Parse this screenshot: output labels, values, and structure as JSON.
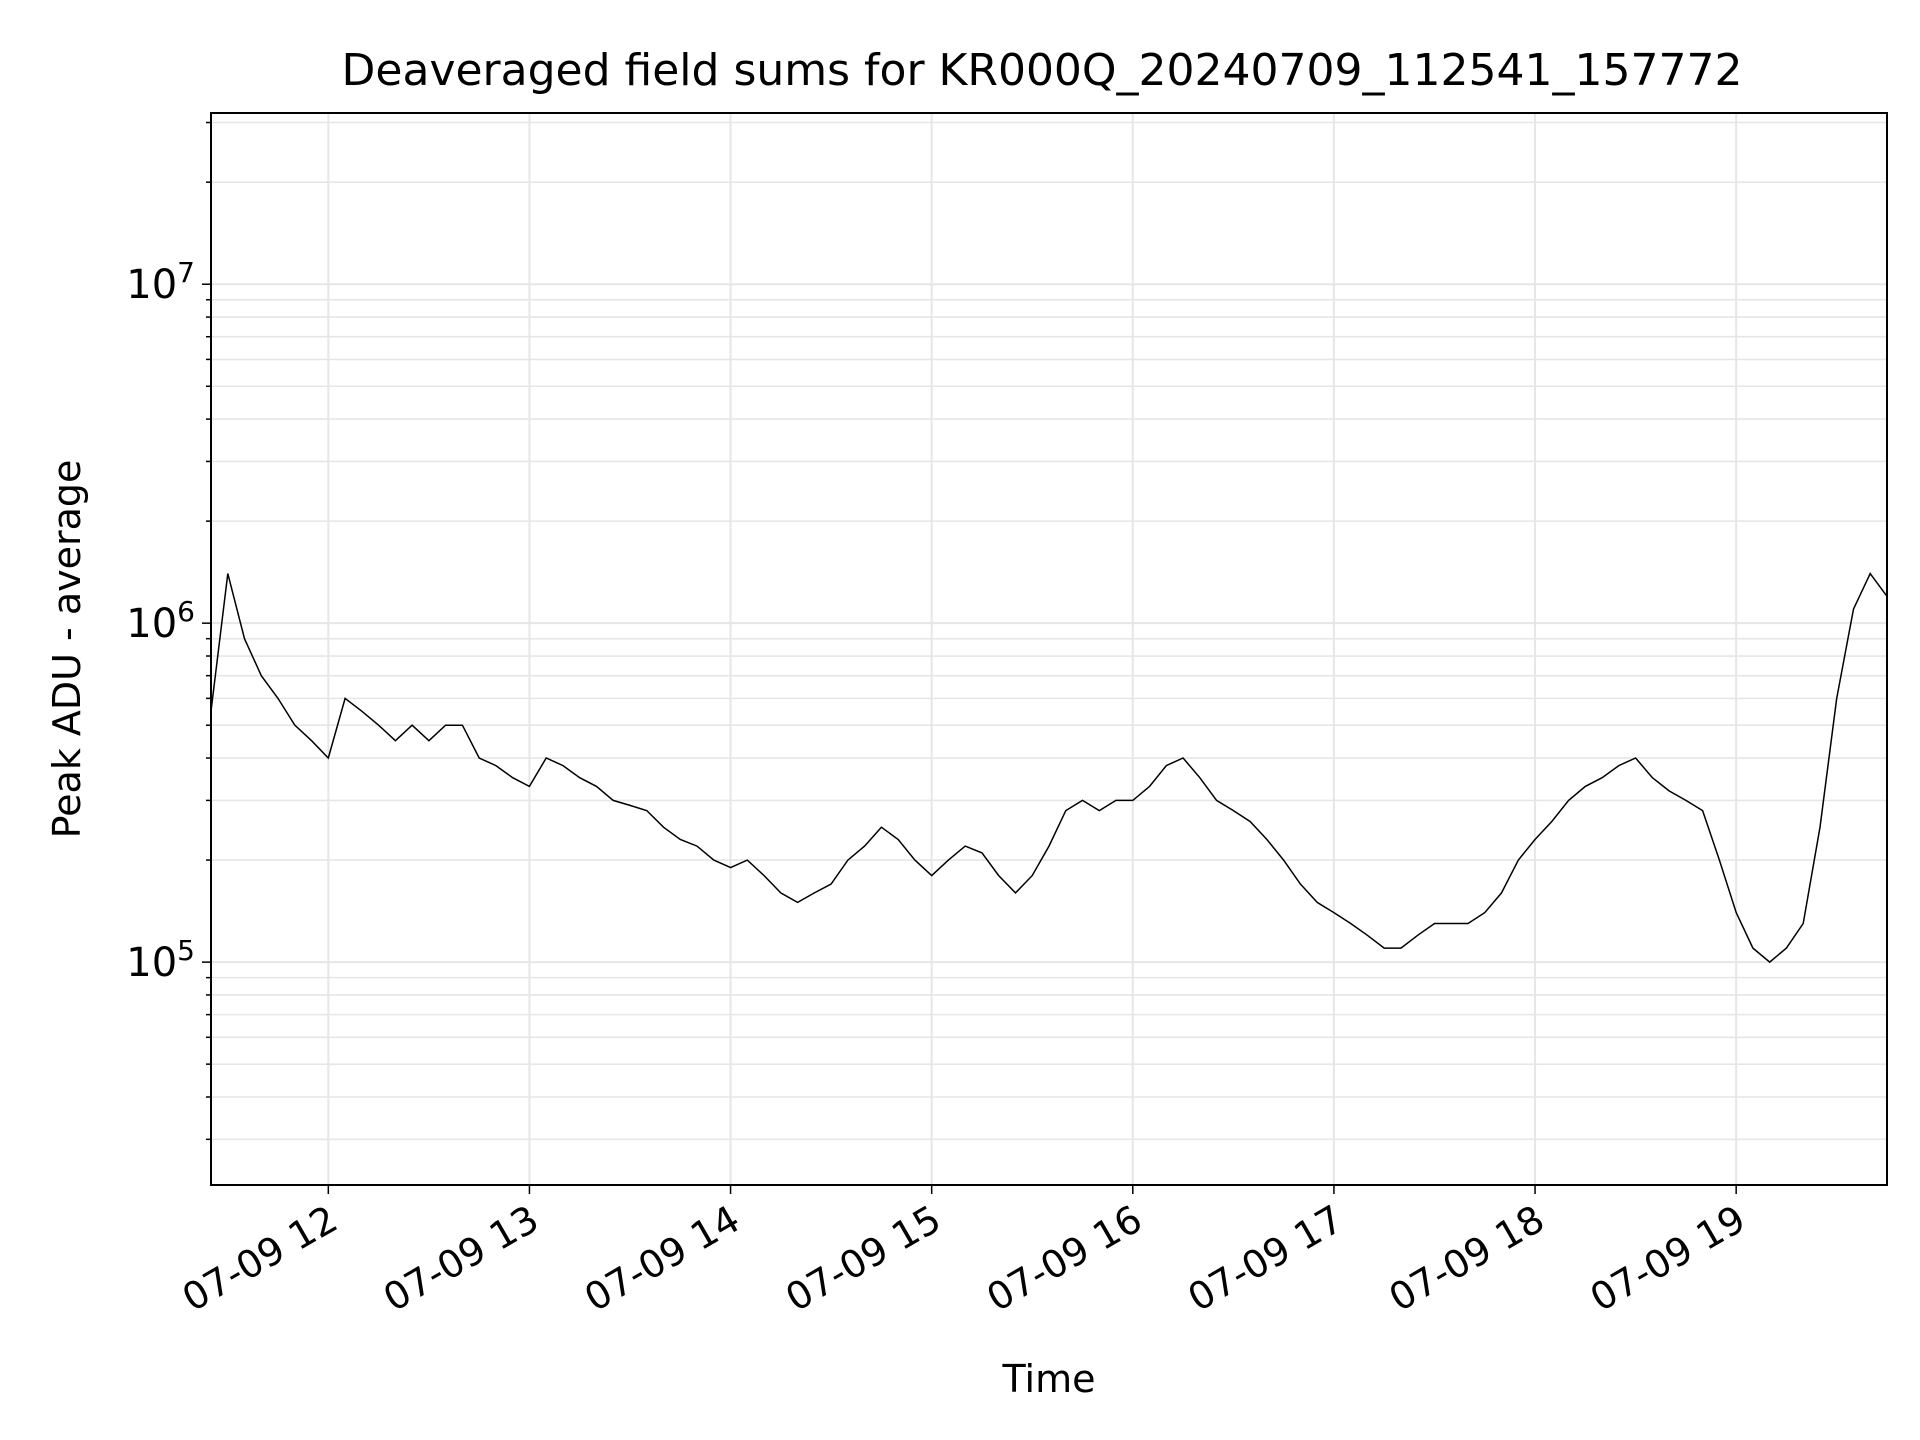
{
  "chart_data": {
    "type": "line",
    "title": "Deaveraged field sums for KR000Q_20240709_112541_157772",
    "xlabel": "Time",
    "ylabel": "Peak ADU - average",
    "yscale": "log",
    "ylim": [
      22000,
      32000000
    ],
    "xlim": [
      "2024-07-09 11:25",
      "2024-07-09 19:45"
    ],
    "grid": true,
    "legend": "none",
    "x_tick_labels": [
      "07-09 12",
      "07-09 13",
      "07-09 14",
      "07-09 15",
      "07-09 16",
      "07-09 17",
      "07-09 18",
      "07-09 19"
    ],
    "x_tick_times": [
      "2024-07-09 12:00",
      "2024-07-09 13:00",
      "2024-07-09 14:00",
      "2024-07-09 15:00",
      "2024-07-09 16:00",
      "2024-07-09 17:00",
      "2024-07-09 18:00",
      "2024-07-09 19:00"
    ],
    "y_ticks": [
      {
        "base": "10",
        "exp": "5",
        "value": 100000
      },
      {
        "base": "10",
        "exp": "6",
        "value": 1000000
      },
      {
        "base": "10",
        "exp": "7",
        "value": 10000000
      }
    ],
    "series": [
      {
        "color": "#000000",
        "x": [
          "2024-07-09 11:25",
          "2024-07-09 11:30",
          "2024-07-09 11:35",
          "2024-07-09 11:40",
          "2024-07-09 11:45",
          "2024-07-09 11:50",
          "2024-07-09 11:55",
          "2024-07-09 12:00",
          "2024-07-09 12:05",
          "2024-07-09 12:10",
          "2024-07-09 12:15",
          "2024-07-09 12:20",
          "2024-07-09 12:25",
          "2024-07-09 12:30",
          "2024-07-09 12:35",
          "2024-07-09 12:40",
          "2024-07-09 12:45",
          "2024-07-09 12:50",
          "2024-07-09 12:55",
          "2024-07-09 13:00",
          "2024-07-09 13:05",
          "2024-07-09 13:10",
          "2024-07-09 13:15",
          "2024-07-09 13:20",
          "2024-07-09 13:25",
          "2024-07-09 13:30",
          "2024-07-09 13:35",
          "2024-07-09 13:40",
          "2024-07-09 13:45",
          "2024-07-09 13:50",
          "2024-07-09 13:55",
          "2024-07-09 14:00",
          "2024-07-09 14:05",
          "2024-07-09 14:10",
          "2024-07-09 14:15",
          "2024-07-09 14:20",
          "2024-07-09 14:25",
          "2024-07-09 14:30",
          "2024-07-09 14:35",
          "2024-07-09 14:40",
          "2024-07-09 14:45",
          "2024-07-09 14:50",
          "2024-07-09 14:55",
          "2024-07-09 15:00",
          "2024-07-09 15:05",
          "2024-07-09 15:10",
          "2024-07-09 15:15",
          "2024-07-09 15:20",
          "2024-07-09 15:25",
          "2024-07-09 15:30",
          "2024-07-09 15:35",
          "2024-07-09 15:40",
          "2024-07-09 15:45",
          "2024-07-09 15:50",
          "2024-07-09 15:55",
          "2024-07-09 16:00",
          "2024-07-09 16:05",
          "2024-07-09 16:10",
          "2024-07-09 16:15",
          "2024-07-09 16:20",
          "2024-07-09 16:25",
          "2024-07-09 16:30",
          "2024-07-09 16:35",
          "2024-07-09 16:40",
          "2024-07-09 16:45",
          "2024-07-09 16:50",
          "2024-07-09 16:55",
          "2024-07-09 17:00",
          "2024-07-09 17:05",
          "2024-07-09 17:10",
          "2024-07-09 17:15",
          "2024-07-09 17:20",
          "2024-07-09 17:25",
          "2024-07-09 17:30",
          "2024-07-09 17:35",
          "2024-07-09 17:40",
          "2024-07-09 17:45",
          "2024-07-09 17:50",
          "2024-07-09 17:55",
          "2024-07-09 18:00",
          "2024-07-09 18:05",
          "2024-07-09 18:10",
          "2024-07-09 18:15",
          "2024-07-09 18:20",
          "2024-07-09 18:25",
          "2024-07-09 18:30",
          "2024-07-09 18:35",
          "2024-07-09 18:40",
          "2024-07-09 18:45",
          "2024-07-09 18:50",
          "2024-07-09 18:55",
          "2024-07-09 19:00",
          "2024-07-09 19:05",
          "2024-07-09 19:10",
          "2024-07-09 19:15",
          "2024-07-09 19:20",
          "2024-07-09 19:25",
          "2024-07-09 19:30",
          "2024-07-09 19:35",
          "2024-07-09 19:40",
          "2024-07-09 19:45"
        ],
        "values": [
          550000,
          1400000,
          900000,
          700000,
          600000,
          500000,
          450000,
          400000,
          600000,
          550000,
          500000,
          450000,
          500000,
          450000,
          500000,
          500000,
          400000,
          380000,
          350000,
          330000,
          400000,
          380000,
          350000,
          330000,
          300000,
          290000,
          280000,
          250000,
          230000,
          220000,
          200000,
          190000,
          200000,
          180000,
          160000,
          150000,
          160000,
          170000,
          200000,
          220000,
          250000,
          230000,
          200000,
          180000,
          200000,
          220000,
          210000,
          180000,
          160000,
          180000,
          220000,
          280000,
          300000,
          280000,
          300000,
          300000,
          330000,
          380000,
          400000,
          350000,
          300000,
          280000,
          260000,
          230000,
          200000,
          170000,
          150000,
          140000,
          130000,
          120000,
          110000,
          110000,
          120000,
          130000,
          130000,
          130000,
          140000,
          160000,
          200000,
          230000,
          260000,
          300000,
          330000,
          350000,
          380000,
          400000,
          350000,
          320000,
          300000,
          280000,
          200000,
          140000,
          110000,
          100000,
          110000,
          130000,
          250000,
          600000,
          1100000,
          1400000,
          1200000
        ]
      }
    ]
  }
}
